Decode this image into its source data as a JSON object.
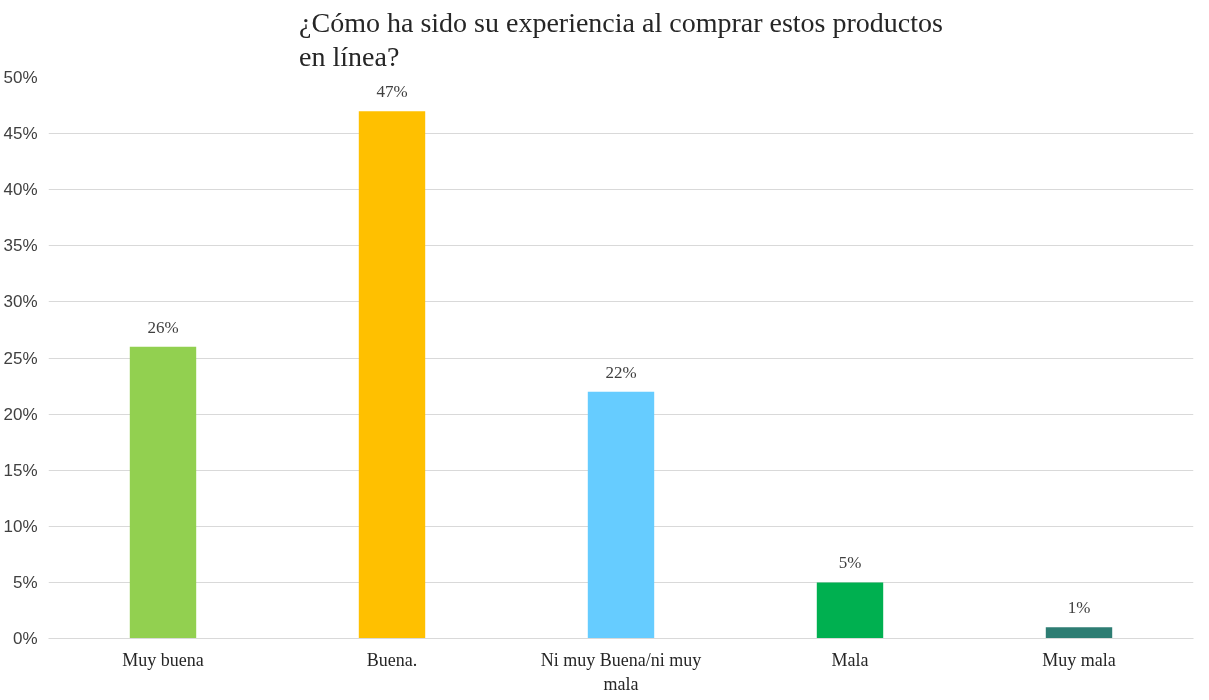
{
  "chart_data": {
    "type": "bar",
    "title": "¿Cómo ha sido su experiencia al comprar estos productos en línea?",
    "categories": [
      "Muy buena",
      "Buena.",
      "Ni muy Buena/ni muy mala",
      "Mala",
      "Muy mala"
    ],
    "values": [
      26,
      47,
      22,
      5,
      1
    ],
    "value_labels": [
      "26%",
      "47%",
      "22%",
      "5%",
      "1%"
    ],
    "colors": [
      "#92d050",
      "#ffc000",
      "#66ccff",
      "#00b050",
      "#2e7d73"
    ],
    "ylim": [
      0,
      50
    ],
    "yticks": [
      {
        "value": 0,
        "label": "0%"
      },
      {
        "value": 5,
        "label": "5%"
      },
      {
        "value": 10,
        "label": "10%"
      },
      {
        "value": 15,
        "label": "15%"
      },
      {
        "value": 20,
        "label": "20%"
      },
      {
        "value": 25,
        "label": "25%"
      },
      {
        "value": 30,
        "label": "30%"
      },
      {
        "value": 35,
        "label": "35%"
      },
      {
        "value": 40,
        "label": "40%"
      },
      {
        "value": 45,
        "label": "45%"
      },
      {
        "value": 50,
        "label": "50%"
      }
    ],
    "grid": "y"
  }
}
